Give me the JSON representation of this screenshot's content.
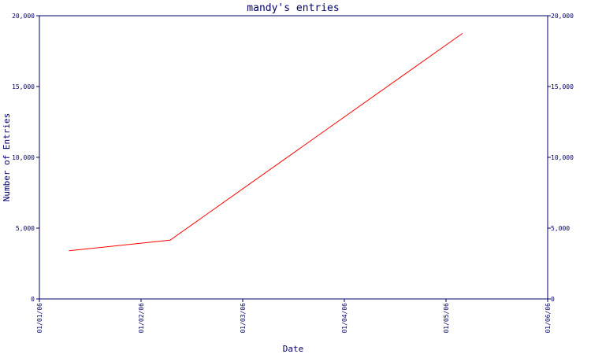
{
  "chart_data": {
    "type": "line",
    "title": "mandy's entries",
    "xlabel": "Date",
    "ylabel": "Number of Entries",
    "x_tick_labels": [
      "01/01/06",
      "01/02/06",
      "01/03/06",
      "01/04/06",
      "01/05/06",
      "01/06/06"
    ],
    "y_tick_labels": [
      "0",
      "5,000",
      "10,000",
      "15,000",
      "20,000"
    ],
    "y_ticks": [
      0,
      5000,
      10000,
      15000,
      20000
    ],
    "ylim": [
      0,
      20000
    ],
    "xlim_month_index": [
      0,
      5
    ],
    "grid": false,
    "series": [
      {
        "color": "#ff0000",
        "x": [
          "2006-01-10",
          "2006-02-09",
          "2006-05-06"
        ],
        "y": [
          3400,
          4150,
          18750
        ]
      }
    ],
    "colors": {
      "axis": "#000066",
      "line": "#ff0000",
      "background": "#ffffff"
    }
  }
}
